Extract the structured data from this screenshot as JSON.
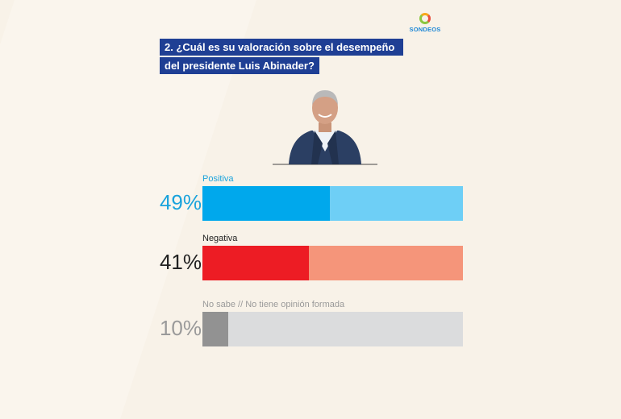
{
  "logo": {
    "text": "SONDEOS"
  },
  "question": {
    "line1": "2. ¿Cuál es su valoración sobre el desempeño",
    "line2": "del presidente Luis Abinader?"
  },
  "colors": {
    "positive": "#00a8ec",
    "positive_track": "#6ecff6",
    "negative": "#ed1c24",
    "negative_track": "#f5957a",
    "unknown": "#929292",
    "unknown_track": "#dbdcdd",
    "question_bg": "#1f3f94"
  },
  "chart_data": {
    "type": "bar",
    "categories": [
      "Positiva",
      "Negativa",
      "No sabe // No tiene opinión formada"
    ],
    "values": [
      49,
      41,
      10
    ],
    "value_labels": [
      "49%",
      "41%",
      "10%"
    ],
    "title": "2. ¿Cuál es su valoración sobre el desempeño del presidente Luis Abinader?",
    "xlim": [
      0,
      100
    ],
    "grid": false,
    "legend": "none"
  }
}
